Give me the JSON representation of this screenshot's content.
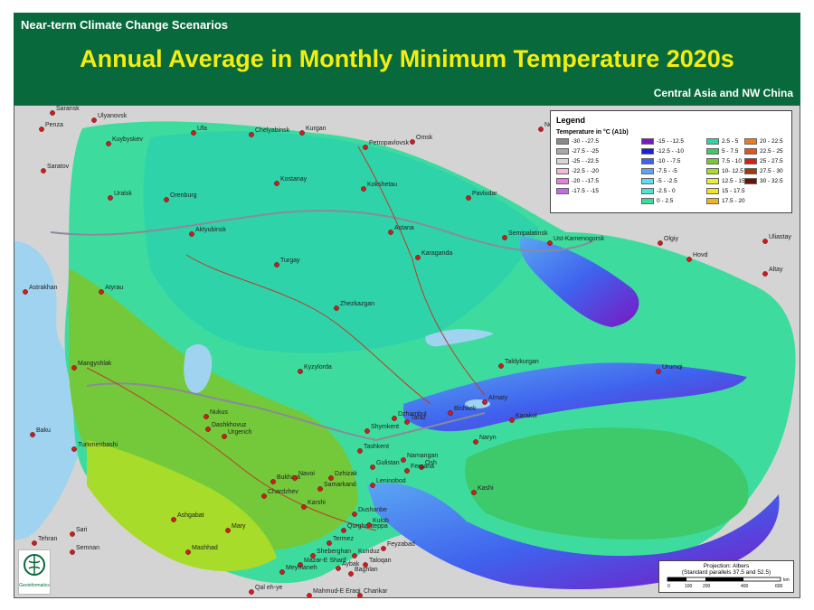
{
  "header": {
    "subtitle": "Near-term Climate Change Scenarios",
    "title": "Annual Average in Monthly Minimum Temperature 2020s",
    "region": "Central Asia and NW China"
  },
  "legend": {
    "title": "Legend",
    "subtitle": "Temperature in °C (A1b)",
    "entries": [
      {
        "label": "-30 - -27.5",
        "color": "#8a8a8a"
      },
      {
        "label": "-27.5 - -25",
        "color": "#a9a9a9"
      },
      {
        "label": "-25 - -22.5",
        "color": "#d6d6d6"
      },
      {
        "label": "-22.5 - -20",
        "color": "#f2b6e0"
      },
      {
        "label": "-20 - -17.5",
        "color": "#e87fd6"
      },
      {
        "label": "-17.5 - -15",
        "color": "#c469e8"
      },
      {
        "label": "-15 - -12.5",
        "color": "#7a17c2"
      },
      {
        "label": "-12.5 - -10",
        "color": "#1f1fd6"
      },
      {
        "label": "-10 - -7.5",
        "color": "#3f62ee"
      },
      {
        "label": "-7.5 - -5",
        "color": "#5aa6f2"
      },
      {
        "label": "-5 - -2.5",
        "color": "#5fdcf5"
      },
      {
        "label": "-2.5 - 0",
        "color": "#4fe3d8"
      },
      {
        "label": "0 - 2.5",
        "color": "#3ddc9e"
      },
      {
        "label": "2.5 - 5",
        "color": "#2fd3a9"
      },
      {
        "label": "5 - 7.5",
        "color": "#3ec96a"
      },
      {
        "label": "7.5 - 10",
        "color": "#74c93a"
      },
      {
        "label": "10- 12.5",
        "color": "#a8dc2a"
      },
      {
        "label": "12.5 - 15",
        "color": "#e6ee3a"
      },
      {
        "label": "15 - 17.5",
        "color": "#f5e226"
      },
      {
        "label": "17.5 - 20",
        "color": "#f2b41e"
      },
      {
        "label": "20 - 22.5",
        "color": "#ee7a18"
      },
      {
        "label": "22.5 - 25",
        "color": "#e8501c"
      },
      {
        "label": "25 - 27.5",
        "color": "#d81e18"
      },
      {
        "label": "27.5 - 30",
        "color": "#9e3a10"
      },
      {
        "label": "30 - 32.5",
        "color": "#6a1208"
      }
    ]
  },
  "projection": {
    "line1": "Projection: Albers",
    "line2": "(Standard parallels 37.5 and 52.5)",
    "scale_unit": "km",
    "scale_ticks": [
      "0",
      "100",
      "200",
      "400",
      "600"
    ]
  },
  "logo_text": "Geoinformatics",
  "cities": [
    {
      "name": "Saransk"
    },
    {
      "name": "Ulyanovsk"
    },
    {
      "name": "Penza"
    },
    {
      "name": "Kuybyskev"
    },
    {
      "name": "Ufa"
    },
    {
      "name": "Chelyabinsk"
    },
    {
      "name": "Kurgan"
    },
    {
      "name": "Petropavlovsk"
    },
    {
      "name": "Omsk"
    },
    {
      "name": "Saratov"
    },
    {
      "name": "Uralsk"
    },
    {
      "name": "Orenburg"
    },
    {
      "name": "Kostanay"
    },
    {
      "name": "Kokshetau"
    },
    {
      "name": "Pavlodar"
    },
    {
      "name": "Aktyubinsk"
    },
    {
      "name": "Turgay"
    },
    {
      "name": "Astana"
    },
    {
      "name": "Karaganda"
    },
    {
      "name": "Semipalatinsk"
    },
    {
      "name": "Ust-Kamenogorsk"
    },
    {
      "name": "Olgiy"
    },
    {
      "name": "Uliastay"
    },
    {
      "name": "Hovd"
    },
    {
      "name": "Altay"
    },
    {
      "name": "Astrakhan"
    },
    {
      "name": "Atyrau"
    },
    {
      "name": "Zhezkazgan"
    },
    {
      "name": "Mangyshlak"
    },
    {
      "name": "Kyzylorda"
    },
    {
      "name": "Taldykurgan"
    },
    {
      "name": "Urumqi"
    },
    {
      "name": "Nukus"
    },
    {
      "name": "Dashkhovuz"
    },
    {
      "name": "Urgench"
    },
    {
      "name": "Dzhambul"
    },
    {
      "name": "Taraz"
    },
    {
      "name": "Bishkek"
    },
    {
      "name": "Almaty"
    },
    {
      "name": "Shymkent"
    },
    {
      "name": "Karakol"
    },
    {
      "name": "Naryn"
    },
    {
      "name": "Baku"
    },
    {
      "name": "Turkmenbashi"
    },
    {
      "name": "Tashkent"
    },
    {
      "name": "Namangan"
    },
    {
      "name": "Gulistan"
    },
    {
      "name": "Osh"
    },
    {
      "name": "Fergana"
    },
    {
      "name": "Bukhara"
    },
    {
      "name": "Navoi"
    },
    {
      "name": "Dzhizak"
    },
    {
      "name": "Samarkand"
    },
    {
      "name": "Chardzhev"
    },
    {
      "name": "Karshi"
    },
    {
      "name": "Kashi"
    },
    {
      "name": "Leninobod"
    },
    {
      "name": "Dushanbe"
    },
    {
      "name": "Ashgabat"
    },
    {
      "name": "Mary"
    },
    {
      "name": "Qurghonteppa"
    },
    {
      "name": "Kulob"
    },
    {
      "name": "Termez"
    },
    {
      "name": "Sari"
    },
    {
      "name": "Tehran"
    },
    {
      "name": "Semnan"
    },
    {
      "name": "Mashhad"
    },
    {
      "name": "Sheberghan"
    },
    {
      "name": "Mazar-E Sharif"
    },
    {
      "name": "Kunduz"
    },
    {
      "name": "Taloqan"
    },
    {
      "name": "Feyzabad"
    },
    {
      "name": "Meymaneh"
    },
    {
      "name": "Aybak"
    },
    {
      "name": "Baghlan"
    },
    {
      "name": "Qal eh-ye"
    },
    {
      "name": "Mahmud-E Eraqi"
    },
    {
      "name": "Charikar"
    },
    {
      "name": "Nov"
    }
  ]
}
